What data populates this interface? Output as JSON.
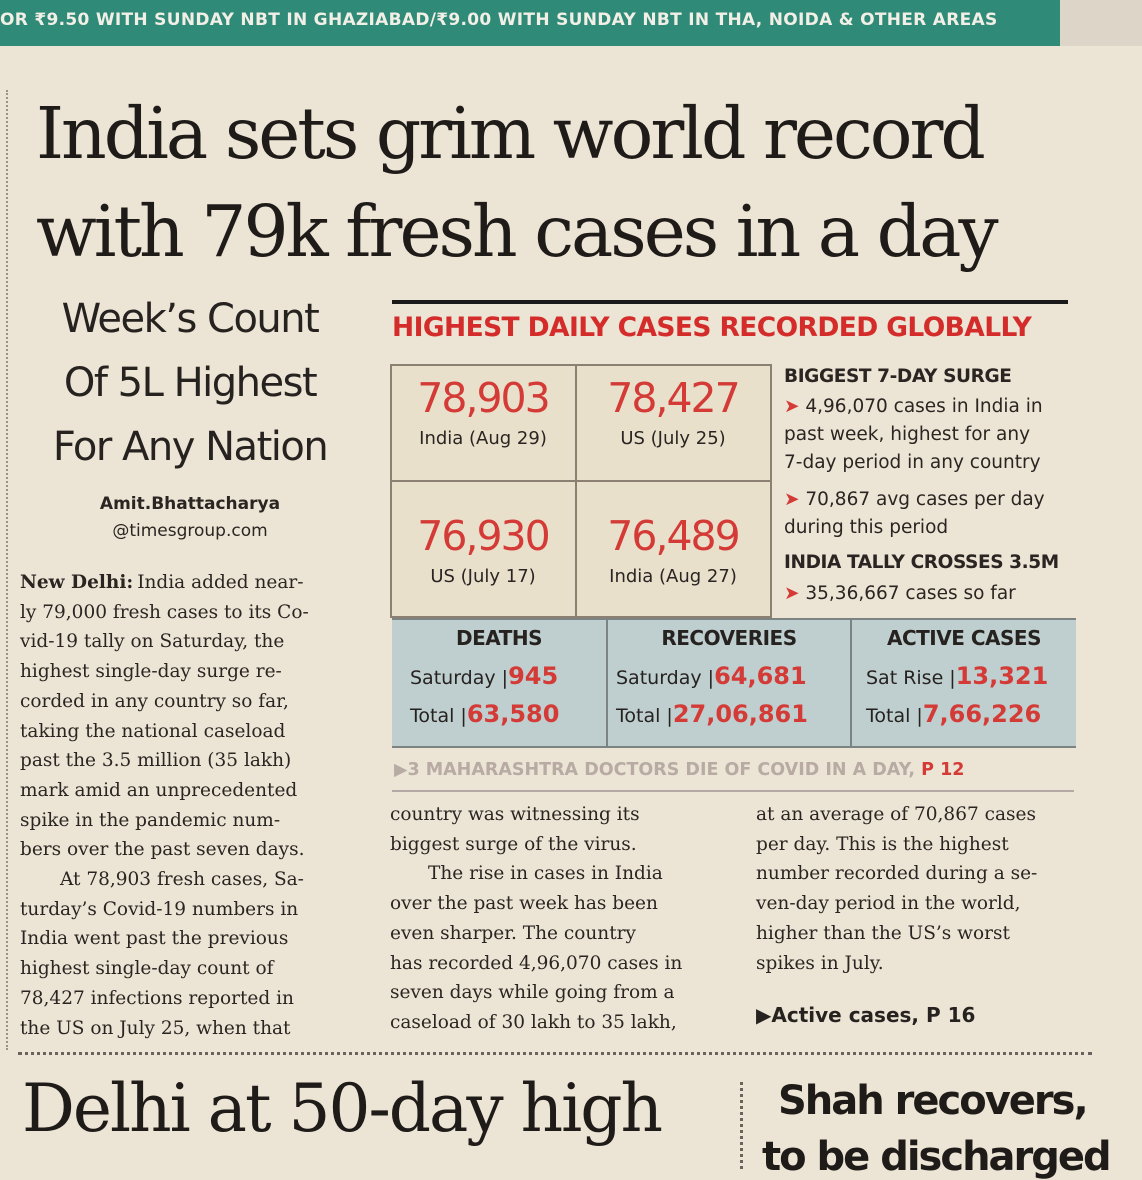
{
  "strip": "OR ₹9.50 WITH SUNDAY NBT IN GHAZIABAD/₹9.00 WITH SUNDAY NBT IN THA, NOIDA & OTHER AREAS",
  "headline": {
    "line1": "India sets grim world record",
    "line2": "with 79k fresh cases in a day"
  },
  "subhead": {
    "line1": "Week’s Count",
    "line2": "Of 5L Highest",
    "line3": "For Any Nation"
  },
  "byline": {
    "name": "Amit.Bhattacharya",
    "email": "@timesgroup.com"
  },
  "article": {
    "col1_p1_lead": "New Delhi:",
    "col1_p1_lines": [
      "India added near-",
      "ly 79,000 fresh cases to its Co-",
      "vid-19 tally on Saturday, the",
      "highest single-day surge re-",
      "corded in any country so far,",
      "taking the national caseload",
      "past the 3.5 million (35 lakh)",
      "mark amid an unprecedented",
      "spike in the pandemic num-",
      "bers over the past seven days."
    ],
    "col1_p2_lines": [
      "At 78,903 fresh cases, Sa-",
      "turday’s Covid-19 numbers in",
      "India went past the previous",
      "highest single-day count of",
      "78,427 infections reported in",
      "the US on July 25, when that"
    ],
    "col2_lines_a": [
      "country was witnessing its",
      "biggest surge of the virus."
    ],
    "col2_lines_b": [
      "The rise in cases in India",
      "over the past week has been",
      "even sharper. The country",
      "has recorded 4,96,070 cases in",
      "seven days while going from a",
      "caseload of 30 lakh to 35 lakh,"
    ],
    "col3_lines": [
      "at an average of 70,867 cases",
      "per day. This is the highest",
      "number recorded during a se-",
      "ven-day period in the world,",
      "higher than the US’s worst",
      "spikes in July."
    ],
    "jump": "▶Active cases, P 16"
  },
  "chart_data": {
    "type": "table",
    "title": "HIGHEST DAILY CASES RECORDED GLOBALLY",
    "records": [
      {
        "value": "78,903",
        "label": "India (Aug 29)"
      },
      {
        "value": "78,427",
        "label": "US (July 25)"
      },
      {
        "value": "76,930",
        "label": "US (July 17)"
      },
      {
        "value": "76,489",
        "label": "India (Aug 27)"
      }
    ],
    "sidebar": {
      "heading1": "BIGGEST 7-DAY SURGE",
      "bullet1": [
        "4,96,070 cases in India in",
        "past week, highest for any",
        "7-day period in any country"
      ],
      "bullet2": [
        "70,867 avg cases per day",
        "during this period"
      ],
      "heading2": "INDIA TALLY CROSSES 3.5M",
      "bullet3": "35,36,667 cases so far"
    },
    "stats": [
      {
        "head": "DEATHS",
        "r1_label": "Saturday |",
        "r1_value": "945",
        "r2_label": "Total |",
        "r2_value": "63,580"
      },
      {
        "head": "RECOVERIES",
        "r1_label": "Saturday |",
        "r1_value": "64,681",
        "r2_label": "Total |",
        "r2_value": "27,06,861"
      },
      {
        "head": "ACTIVE CASES",
        "r1_label": "Sat Rise |",
        "r1_value": "13,321",
        "r2_label": "Total |",
        "r2_value": "7,66,226"
      }
    ],
    "footer_link": {
      "text": "▶3 MAHARASHTRA DOCTORS DIE OF COVID IN A DAY,",
      "page": "P 12"
    }
  },
  "next_stories": {
    "left": "Delhi at 50-day high",
    "right_line1": "Shah recovers,",
    "right_line2": "to be discharged"
  }
}
